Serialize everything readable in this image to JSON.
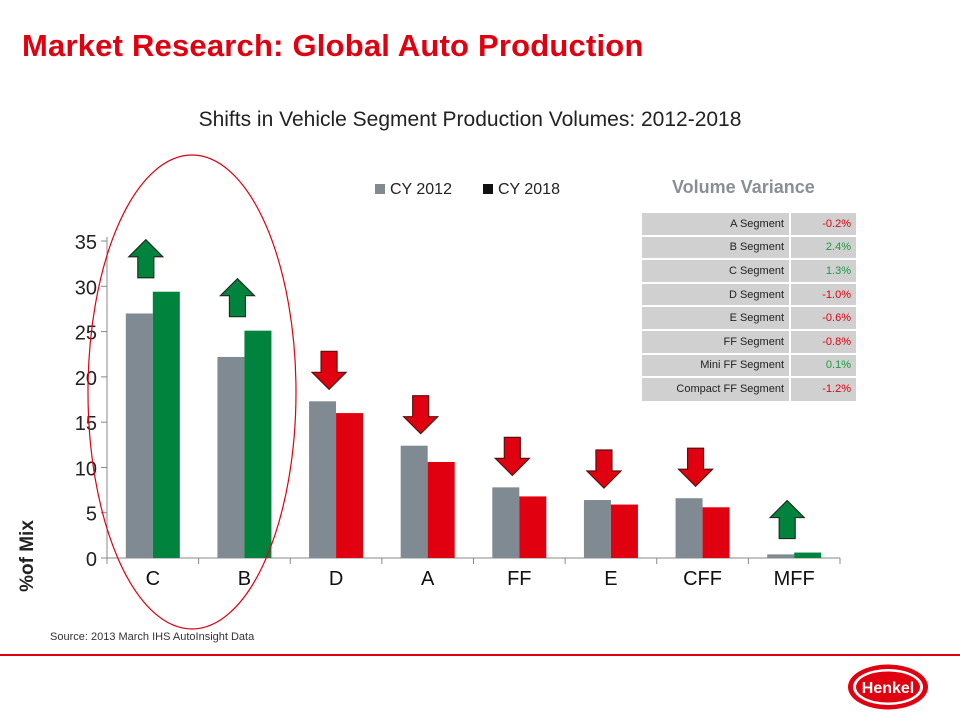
{
  "title": "Market Research: Global Auto Production",
  "source": "Source: 2013 March IHS AutoInsight Data",
  "logo_text": "Henkel",
  "colors": {
    "brand_red": "#e1000f",
    "cy2012": "#7f8a93",
    "cy2018_up": "#00843d",
    "cy2018_down": "#e1000f",
    "positive": "#1a9a40",
    "negative": "#e1000f"
  },
  "chart_data": {
    "type": "bar",
    "title": "Shifts in Vehicle Segment Production Volumes: 2012-2018",
    "xlabel": "",
    "ylabel": "%of Mix",
    "categories": [
      "C",
      "B",
      "D",
      "A",
      "FF",
      "E",
      "CFF",
      "MFF"
    ],
    "series": [
      {
        "name": "CY 2012",
        "values": [
          27.0,
          22.2,
          17.3,
          12.4,
          7.8,
          6.4,
          6.6,
          0.4
        ]
      },
      {
        "name": "CY 2018",
        "values": [
          29.4,
          25.1,
          16.0,
          10.6,
          6.8,
          5.9,
          5.6,
          0.6
        ]
      }
    ],
    "trend": [
      "up",
      "up",
      "down",
      "down",
      "down",
      "down",
      "down",
      "up"
    ],
    "yticks": [
      "0",
      "5",
      "10",
      "15",
      "20",
      "25",
      "30",
      "35"
    ],
    "ylim": [
      0,
      35
    ],
    "legend": "top",
    "grid": false
  },
  "variance": {
    "title": "Volume Variance",
    "rows": [
      {
        "label": "A Segment",
        "value": "-0.2%",
        "sign": "neg"
      },
      {
        "label": "B Segment",
        "value": "2.4%",
        "sign": "pos"
      },
      {
        "label": "C Segment",
        "value": "1.3%",
        "sign": "pos"
      },
      {
        "label": "D Segment",
        "value": "-1.0%",
        "sign": "neg"
      },
      {
        "label": "E Segment",
        "value": "-0.6%",
        "sign": "neg"
      },
      {
        "label": "FF Segment",
        "value": "-0.8%",
        "sign": "neg"
      },
      {
        "label": "Mini FF Segment",
        "value": "0.1%",
        "sign": "pos"
      },
      {
        "label": "Compact FF Segment",
        "value": "-1.2%",
        "sign": "neg"
      }
    ]
  }
}
